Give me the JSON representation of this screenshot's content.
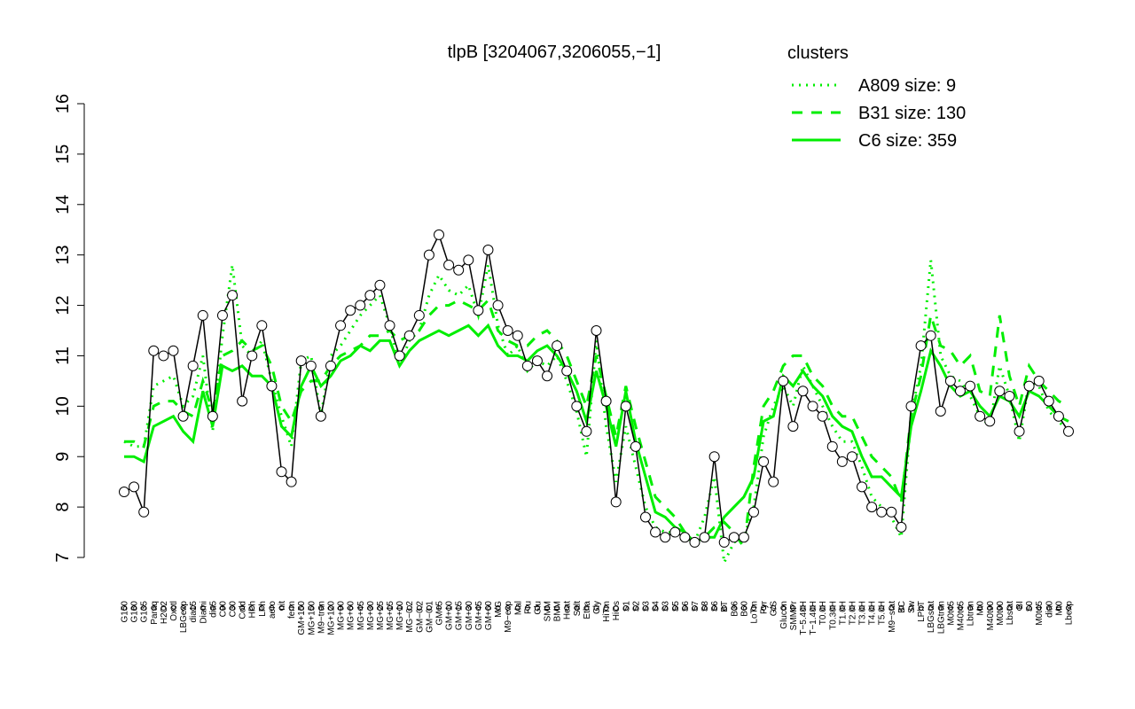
{
  "chart_data": {
    "type": "line",
    "title": "tlpB [3204067,3206055,−1]",
    "categories": [
      "G150",
      "G180",
      "G135",
      "Paraq",
      "H2O2",
      "Oxctl",
      "LBGexp",
      "dia15",
      "Diami",
      "dia5",
      "C90",
      "C30",
      "Cold",
      "HPh",
      "LPh",
      "aero",
      "nit",
      "ferm",
      "GM+150",
      "MG+150",
      "M9−tran",
      "MG+120",
      "MG+90",
      "MG+60",
      "MG+45",
      "MG+30",
      "MG+25",
      "MG+15",
      "MG+10",
      "MG−0.2",
      "GM−0.2",
      "GM−0.1",
      "GM+5",
      "GM+10",
      "GM+15",
      "GM+30",
      "GM+45",
      "GM+60",
      "M/G",
      "M9−exp",
      "Mal",
      "Fru",
      "Glu",
      "SMM",
      "BMM",
      "Heat",
      "Salt",
      "Etha",
      "Gly",
      "HiTm",
      "HiOs",
      "S1",
      "S2",
      "S3",
      "S4",
      "S3",
      "S5",
      "S6",
      "S7",
      "S8",
      "S6",
      "BT",
      "B36",
      "B60",
      "LoTm",
      "Pyr",
      "G/S",
      "Glucon",
      "SMMPr",
      "T−5.40H",
      "T−1.40H",
      "T0.0H",
      "T0.30H",
      "T1.0H",
      "T2.0H",
      "T3.0H",
      "T4.0H",
      "T5.0H",
      "M9−stat",
      "BC",
      "Sw",
      "LPhT",
      "LBGstat",
      "LBGtran",
      "M0t45",
      "M40t45",
      "Lbtran",
      "Mt0",
      "M40t90",
      "M0t90",
      "Lbstat",
      "BI",
      "S0",
      "M0t45",
      "dia0",
      "Mt0",
      "Lbexp"
    ],
    "values": [
      8.3,
      8.4,
      7.9,
      11.1,
      11.0,
      11.1,
      9.8,
      10.8,
      11.8,
      9.8,
      11.8,
      12.2,
      10.1,
      11.0,
      11.6,
      10.4,
      8.7,
      8.5,
      10.9,
      10.8,
      9.8,
      10.8,
      11.6,
      11.9,
      12.0,
      12.2,
      12.4,
      11.6,
      11.0,
      11.4,
      11.8,
      13.0,
      13.4,
      12.8,
      12.7,
      12.9,
      11.9,
      13.1,
      12.0,
      11.5,
      11.4,
      10.8,
      10.9,
      10.6,
      11.2,
      10.7,
      10.0,
      9.5,
      11.5,
      10.1,
      8.1,
      10.0,
      9.2,
      7.8,
      7.5,
      7.4,
      7.5,
      7.4,
      7.3,
      7.4,
      9.0,
      7.3,
      7.4,
      7.4,
      7.9,
      8.9,
      8.5,
      10.5,
      9.6,
      10.3,
      10.0,
      9.8,
      9.2,
      8.9,
      9.0,
      8.4,
      8.0,
      7.9,
      7.9,
      7.6,
      10.0,
      11.2,
      11.4,
      9.9,
      10.5,
      10.3,
      10.4,
      9.8,
      9.7,
      10.3,
      10.2,
      9.5,
      10.4,
      10.5,
      10.1,
      9.8,
      9.5
    ],
    "color": "#000000",
    "legend_title": "clusters",
    "series": [
      {
        "name": "A809 size: 9",
        "color": "#00ee00",
        "linestyle": "dotted",
        "values": [
          9.3,
          9.2,
          9.2,
          10.4,
          10.5,
          10.6,
          10.0,
          10.2,
          11.0,
          9.5,
          11.4,
          12.8,
          11.2,
          11.0,
          11.3,
          10.5,
          9.8,
          9.2,
          10.9,
          11.0,
          9.8,
          11.0,
          11.2,
          11.5,
          11.8,
          12.0,
          12.2,
          11.6,
          10.8,
          11.3,
          11.5,
          12.2,
          12.6,
          12.3,
          12.2,
          12.4,
          11.8,
          12.8,
          11.6,
          11.0,
          11.2,
          10.7,
          10.9,
          10.8,
          11.0,
          10.5,
          9.9,
          9.0,
          11.3,
          9.6,
          8.5,
          9.6,
          8.8,
          8.0,
          7.6,
          7.5,
          7.5,
          7.4,
          7.3,
          7.8,
          8.6,
          6.9,
          7.3,
          7.4,
          8.0,
          9.4,
          10.0,
          10.4,
          10.0,
          10.8,
          10.4,
          10.0,
          9.6,
          9.3,
          9.3,
          8.8,
          8.2,
          8.0,
          7.8,
          7.4,
          9.8,
          10.8,
          12.9,
          11.0,
          10.6,
          10.5,
          10.2,
          9.8,
          9.6,
          10.8,
          10.2,
          9.3,
          10.5,
          10.4,
          9.9,
          9.7,
          9.5
        ]
      },
      {
        "name": "B31 size: 130",
        "color": "#00ee00",
        "linestyle": "dashed",
        "values": [
          9.3,
          9.3,
          9.2,
          10.0,
          10.1,
          10.1,
          9.9,
          9.8,
          10.5,
          9.9,
          11.0,
          11.1,
          11.3,
          11.1,
          11.2,
          10.8,
          10.0,
          9.7,
          10.3,
          10.5,
          10.5,
          10.8,
          11.0,
          11.1,
          11.2,
          11.4,
          11.4,
          11.5,
          11.3,
          11.4,
          11.5,
          11.8,
          12.0,
          12.0,
          12.1,
          12.0,
          11.9,
          12.1,
          11.5,
          11.3,
          11.2,
          11.2,
          11.4,
          11.5,
          11.3,
          11.0,
          10.5,
          10.0,
          11.0,
          10.2,
          9.4,
          10.4,
          9.6,
          8.9,
          8.2,
          8.0,
          7.8,
          7.5,
          7.3,
          7.4,
          7.6,
          7.7,
          7.5,
          7.2,
          8.8,
          10.0,
          10.3,
          10.8,
          11.0,
          11.0,
          10.6,
          10.4,
          10.0,
          9.8,
          9.8,
          9.4,
          9.0,
          8.8,
          8.6,
          8.1,
          9.8,
          10.6,
          11.8,
          11.2,
          11.1,
          10.8,
          11.0,
          10.3,
          10.2,
          11.8,
          10.6,
          10.0,
          10.8,
          10.5,
          10.3,
          10.1,
          10.0
        ]
      },
      {
        "name": "C6 size: 359",
        "color": "#00ee00",
        "linestyle": "solid",
        "values": [
          9.0,
          9.0,
          8.9,
          9.6,
          9.7,
          9.8,
          9.5,
          9.3,
          10.3,
          9.6,
          10.8,
          10.7,
          10.8,
          10.6,
          10.6,
          10.4,
          9.6,
          9.4,
          10.4,
          10.8,
          10.4,
          10.6,
          10.9,
          11.0,
          11.2,
          11.1,
          11.3,
          11.3,
          10.8,
          11.1,
          11.3,
          11.4,
          11.5,
          11.4,
          11.5,
          11.6,
          11.4,
          11.6,
          11.2,
          11.0,
          11.0,
          10.9,
          11.1,
          11.2,
          11.0,
          10.7,
          10.3,
          9.7,
          10.7,
          10.0,
          9.2,
          10.3,
          9.3,
          8.6,
          7.9,
          7.8,
          7.6,
          7.5,
          7.3,
          7.4,
          7.4,
          7.8,
          8.0,
          8.2,
          8.6,
          9.7,
          9.8,
          10.6,
          10.4,
          10.7,
          10.4,
          10.2,
          9.8,
          9.6,
          9.5,
          9.0,
          8.6,
          8.6,
          8.4,
          8.2,
          9.6,
          10.3,
          11.1,
          10.8,
          10.4,
          10.2,
          10.3,
          10.0,
          9.8,
          10.2,
          10.1,
          9.8,
          10.3,
          10.2,
          10.0,
          9.8,
          9.7
        ]
      }
    ],
    "ylim": [
      7,
      16
    ],
    "yticks": [
      7,
      8,
      9,
      10,
      11,
      12,
      13,
      14,
      15,
      16
    ]
  }
}
